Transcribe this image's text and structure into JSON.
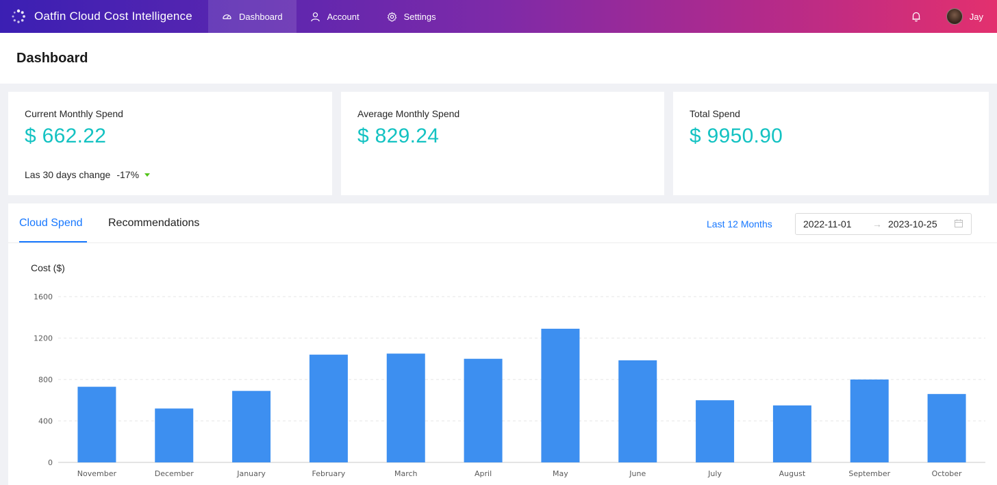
{
  "app": {
    "title": "Oatfin Cloud Cost Intelligence"
  },
  "nav": {
    "items": [
      {
        "label": "Dashboard",
        "icon": "dashboard-icon",
        "active": true
      },
      {
        "label": "Account",
        "icon": "user-icon",
        "active": false
      },
      {
        "label": "Settings",
        "icon": "gear-icon",
        "active": false
      }
    ],
    "user_name": "Jay"
  },
  "page": {
    "title": "Dashboard"
  },
  "cards": [
    {
      "label": "Current Monthly Spend",
      "value": "$ 662.22",
      "change_label": "Las 30 days change",
      "change_value": "-17%"
    },
    {
      "label": "Average Monthly Spend",
      "value": "$ 829.24"
    },
    {
      "label": "Total Spend",
      "value": "$ 9950.90"
    }
  ],
  "tabs": [
    {
      "label": "Cloud Spend",
      "active": true
    },
    {
      "label": "Recommendations",
      "active": false
    }
  ],
  "filters": {
    "range_link": "Last 12 Months",
    "start_date": "2022-11-01",
    "end_date": "2023-10-25"
  },
  "colors": {
    "accent": "#1677ff",
    "stat_value": "#13c2c2",
    "bar": "#3d8ff0",
    "trend_down": "#52c41a"
  },
  "chart_data": {
    "type": "bar",
    "ylabel": "Cost ($)",
    "xlabel": "",
    "ylim": [
      0,
      1600
    ],
    "yticks": [
      0,
      400,
      800,
      1200,
      1600
    ],
    "grid": true,
    "categories": [
      "November",
      "December",
      "January",
      "February",
      "March",
      "April",
      "May",
      "June",
      "July",
      "August",
      "September",
      "October"
    ],
    "values": [
      730,
      520,
      690,
      1040,
      1050,
      1000,
      1290,
      985,
      600,
      550,
      800,
      660
    ]
  }
}
